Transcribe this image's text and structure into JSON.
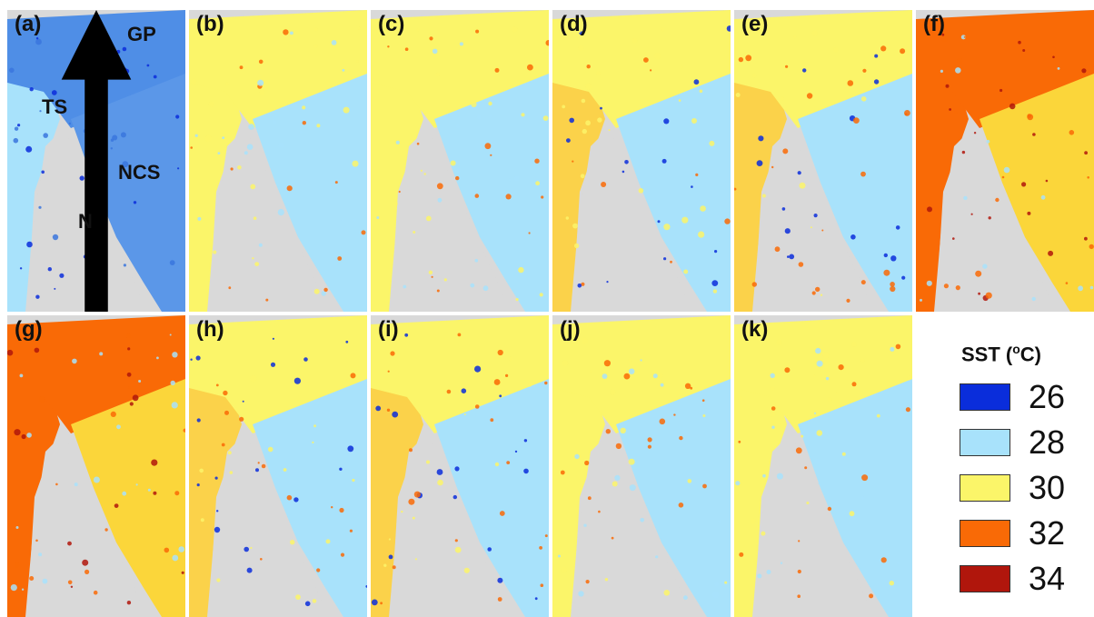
{
  "panels": [
    {
      "label": "(a)",
      "theme": "cold"
    },
    {
      "label": "(b)",
      "theme": "cool"
    },
    {
      "label": "(c)",
      "theme": "cool"
    },
    {
      "label": "(d)",
      "theme": "mixed"
    },
    {
      "label": "(e)",
      "theme": "mixed"
    },
    {
      "label": "(f)",
      "theme": "hot"
    },
    {
      "label": "(g)",
      "theme": "hot"
    },
    {
      "label": "(h)",
      "theme": "mixed"
    },
    {
      "label": "(i)",
      "theme": "mixed"
    },
    {
      "label": "(j)",
      "theme": "cool"
    },
    {
      "label": "(k)",
      "theme": "cool"
    }
  ],
  "regions": {
    "gp": "GP",
    "ts": "TS",
    "ncs": "NCS",
    "north": "N"
  },
  "legend": {
    "title_prefix": "SST (",
    "title_sup": "o",
    "title_suffix": "C)",
    "items": [
      {
        "value": "26",
        "color": "#0a2ddb"
      },
      {
        "value": "28",
        "color": "#a8e2fb"
      },
      {
        "value": "30",
        "color": "#fbf569"
      },
      {
        "value": "32",
        "color": "#f96a06"
      },
      {
        "value": "34",
        "color": "#b0160c"
      }
    ]
  },
  "land_color": "#d9d9d9"
}
